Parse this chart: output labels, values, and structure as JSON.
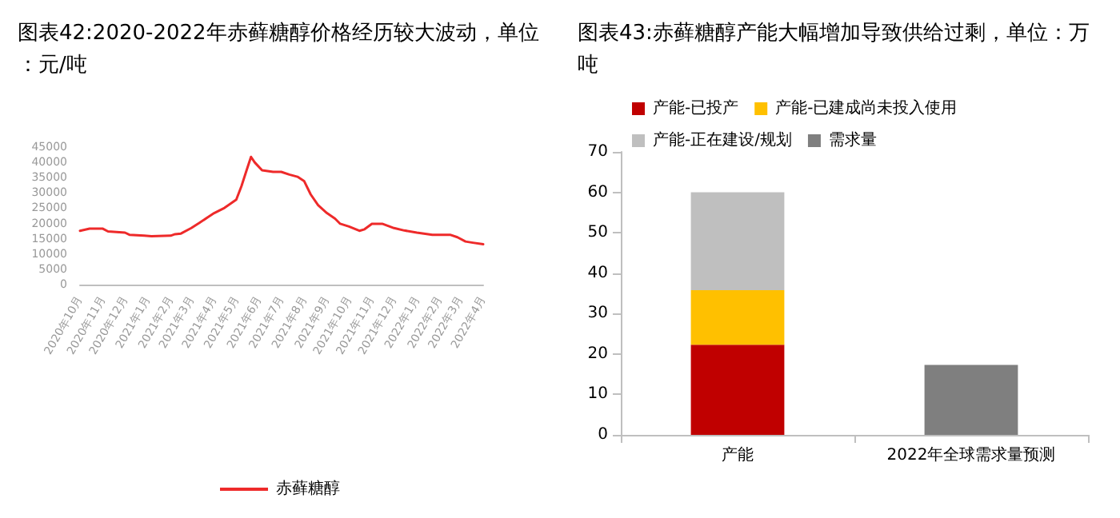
{
  "chart_data": [
    {
      "type": "line",
      "title": "图表42:2020-2022年赤藓糖醇价格经历较大波动，单位：元/吨",
      "x": [
        "2020-10-01",
        "2020-10-14",
        "2020-11-01",
        "2020-11-08",
        "2020-12-01",
        "2020-12-07",
        "2020-12-27",
        "2021-01-06",
        "2021-02-01",
        "2021-02-07",
        "2021-02-15",
        "2021-03-01",
        "2021-03-12",
        "2021-03-23",
        "2021-04-01",
        "2021-04-15",
        "2021-05-01",
        "2021-05-08",
        "2021-05-15",
        "2021-05-21",
        "2021-05-26",
        "2021-06-05",
        "2021-06-20",
        "2021-07-01",
        "2021-07-12",
        "2021-07-23",
        "2021-08-01",
        "2021-08-10",
        "2021-08-20",
        "2021-09-01",
        "2021-09-12",
        "2021-09-19",
        "2021-10-01",
        "2021-10-15",
        "2021-10-22",
        "2021-11-01",
        "2021-11-15",
        "2021-12-01",
        "2021-12-15",
        "2022-01-01",
        "2022-01-22",
        "2022-02-15",
        "2022-02-25",
        "2022-03-08",
        "2022-03-18",
        "2022-04-01"
      ],
      "series": [
        {
          "name": "赤藓糖醇",
          "color": "#ee2a2a",
          "values": [
            17600,
            18300,
            18300,
            17400,
            17000,
            16300,
            16000,
            15800,
            16000,
            16500,
            16700,
            18500,
            20200,
            22000,
            23400,
            25100,
            27800,
            32200,
            37400,
            41800,
            40000,
            37400,
            36900,
            36900,
            36000,
            35300,
            33900,
            29500,
            26000,
            23400,
            21600,
            19900,
            19000,
            17600,
            18100,
            19900,
            19900,
            18500,
            17700,
            17000,
            16300,
            16300,
            15500,
            14100,
            13700,
            13200
          ]
        }
      ],
      "xlim": [
        "2020-10-01",
        "2022-04-01"
      ],
      "xticks": [
        {
          "value": "2020-10-01",
          "label": "2020年10月"
        },
        {
          "value": "2020-11-01",
          "label": "2020年11月"
        },
        {
          "value": "2020-12-01",
          "label": "2020年12月"
        },
        {
          "value": "2021-01-01",
          "label": "2021年1月"
        },
        {
          "value": "2021-02-01",
          "label": "2021年2月"
        },
        {
          "value": "2021-03-01",
          "label": "2021年3月"
        },
        {
          "value": "2021-04-01",
          "label": "2021年4月"
        },
        {
          "value": "2021-05-01",
          "label": "2021年5月"
        },
        {
          "value": "2021-06-01",
          "label": "2021年6月"
        },
        {
          "value": "2021-07-01",
          "label": "2021年7月"
        },
        {
          "value": "2021-08-01",
          "label": "2021年8月"
        },
        {
          "value": "2021-09-01",
          "label": "2021年9月"
        },
        {
          "value": "2021-10-01",
          "label": "2021年10月"
        },
        {
          "value": "2021-11-01",
          "label": "2021年11月"
        },
        {
          "value": "2021-12-01",
          "label": "2021年12月"
        },
        {
          "value": "2022-01-01",
          "label": "2022年1月"
        },
        {
          "value": "2022-02-01",
          "label": "2022年2月"
        },
        {
          "value": "2022-03-01",
          "label": "2022年3月"
        },
        {
          "value": "2022-04-01",
          "label": "2022年4月"
        }
      ],
      "ylim": [
        0,
        45000
      ],
      "yticks": [
        0,
        5000,
        10000,
        15000,
        20000,
        25000,
        30000,
        35000,
        40000,
        45000
      ],
      "grid": false,
      "legend": "bottom",
      "marker": "none",
      "line_style": "solid"
    },
    {
      "type": "bar",
      "title": "图表43:赤藓糖醇产能大幅增加导致供给过剩，单位：万吨",
      "categories": [
        "产能",
        "2022年全球需求量预测"
      ],
      "stacked": true,
      "series": [
        {
          "name": "产能-已投产",
          "color": "#c00000",
          "values": [
            22.3,
            null
          ]
        },
        {
          "name": "产能-已建成尚未投入使用",
          "color": "#ffc000",
          "values": [
            13.5,
            null
          ]
        },
        {
          "name": "产能-正在建设/规划",
          "color": "#bfbfbf",
          "values": [
            24.2,
            null
          ]
        },
        {
          "name": "需求量",
          "color": "#7f7f7f",
          "values": [
            null,
            17.3
          ]
        }
      ],
      "ylim": [
        0,
        70
      ],
      "yticks": [
        0,
        10,
        20,
        30,
        40,
        50,
        60,
        70
      ],
      "grid": false,
      "legend": "top"
    }
  ]
}
